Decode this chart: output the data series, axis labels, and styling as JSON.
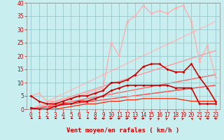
{
  "background_color": "#c8eef0",
  "grid_color": "#98c8cc",
  "xlabel": "Vent moyen/en rafales ( km/h )",
  "xlabel_color": "#cc0000",
  "xlabel_fontsize": 6.5,
  "xtick_fontsize": 5.5,
  "ytick_fontsize": 6,
  "tick_color": "#cc0000",
  "xlim": [
    -0.5,
    23.5
  ],
  "ylim": [
    0,
    40
  ],
  "yticks": [
    0,
    5,
    10,
    15,
    20,
    25,
    30,
    35,
    40
  ],
  "xticks": [
    0,
    1,
    2,
    3,
    4,
    5,
    6,
    7,
    8,
    9,
    10,
    11,
    12,
    13,
    14,
    15,
    16,
    17,
    18,
    19,
    20,
    21,
    22,
    23
  ],
  "series": [
    {
      "x": [
        0,
        1,
        2,
        3,
        4,
        5,
        6,
        7,
        8,
        9,
        10,
        11,
        12,
        13,
        14,
        15,
        16,
        17,
        18,
        19,
        20,
        21,
        22,
        23
      ],
      "y": [
        0,
        0,
        0,
        0,
        0.5,
        1,
        1.5,
        2,
        2,
        2.5,
        3,
        3,
        3.5,
        3.5,
        4,
        4,
        4,
        4,
        4,
        3.5,
        3,
        3,
        3,
        3
      ],
      "color": "#ff2200",
      "linewidth": 0.9,
      "marker": null,
      "zorder": 2
    },
    {
      "x": [
        0,
        1,
        2,
        3,
        4,
        5,
        6,
        7,
        8,
        9,
        10,
        11,
        12,
        13,
        14,
        15,
        16,
        17,
        18,
        19,
        20,
        21,
        22,
        23
      ],
      "y": [
        0.5,
        0,
        0,
        1,
        2,
        2,
        3,
        3,
        4,
        5,
        7,
        8,
        9,
        9,
        9,
        9,
        9,
        9,
        8,
        8,
        8,
        2,
        2,
        2
      ],
      "color": "#cc0000",
      "linewidth": 1.2,
      "marker": "D",
      "markersize": 2.0,
      "zorder": 4
    },
    {
      "x": [
        0,
        1,
        2,
        3,
        4,
        5,
        6,
        7,
        8,
        9,
        10,
        11,
        12,
        13,
        14,
        15,
        16,
        17,
        18,
        19,
        20,
        21,
        22,
        23
      ],
      "y": [
        5,
        3,
        2,
        2,
        3,
        4,
        5,
        5,
        6,
        7,
        10,
        10,
        11,
        13,
        16,
        17,
        17,
        15,
        14,
        14,
        17,
        12,
        8,
        3
      ],
      "color": "#cc0000",
      "linewidth": 1.2,
      "marker": "D",
      "markersize": 2.0,
      "zorder": 4
    },
    {
      "x": [
        0,
        1,
        2,
        3,
        4,
        5,
        6,
        7,
        8,
        9,
        10,
        11,
        12,
        13,
        14,
        15,
        16,
        17,
        18,
        19,
        20,
        21,
        22,
        23
      ],
      "y": [
        5,
        6,
        3,
        3,
        4,
        4,
        5,
        6,
        7,
        8,
        25,
        20,
        33,
        35,
        39,
        36,
        37,
        36,
        38,
        39,
        33,
        18,
        24,
        12
      ],
      "color": "#ffaaaa",
      "linewidth": 0.9,
      "marker": "D",
      "markersize": 2.0,
      "zorder": 3
    },
    {
      "x": [
        0,
        23
      ],
      "y": [
        0,
        33
      ],
      "color": "#ffbbbb",
      "linewidth": 1.0,
      "marker": null,
      "zorder": 1
    },
    {
      "x": [
        0,
        23
      ],
      "y": [
        0,
        22
      ],
      "color": "#ff9999",
      "linewidth": 1.0,
      "marker": null,
      "zorder": 1
    },
    {
      "x": [
        0,
        23
      ],
      "y": [
        0,
        13
      ],
      "color": "#ff6666",
      "linewidth": 1.0,
      "marker": null,
      "zorder": 1
    },
    {
      "x": [
        0,
        23
      ],
      "y": [
        0,
        9
      ],
      "color": "#ff4444",
      "linewidth": 1.0,
      "marker": null,
      "zorder": 1
    }
  ],
  "wind_arrows": {
    "x": [
      0,
      1,
      2,
      3,
      4,
      5,
      6,
      7,
      8,
      9,
      10,
      11,
      12,
      13,
      14,
      15,
      16,
      17,
      18,
      19,
      20,
      21,
      22,
      23
    ],
    "angles": [
      225,
      225,
      225,
      225,
      225,
      225,
      225,
      225,
      270,
      270,
      90,
      90,
      90,
      90,
      90,
      45,
      45,
      45,
      45,
      45,
      315,
      315,
      270,
      270
    ]
  }
}
